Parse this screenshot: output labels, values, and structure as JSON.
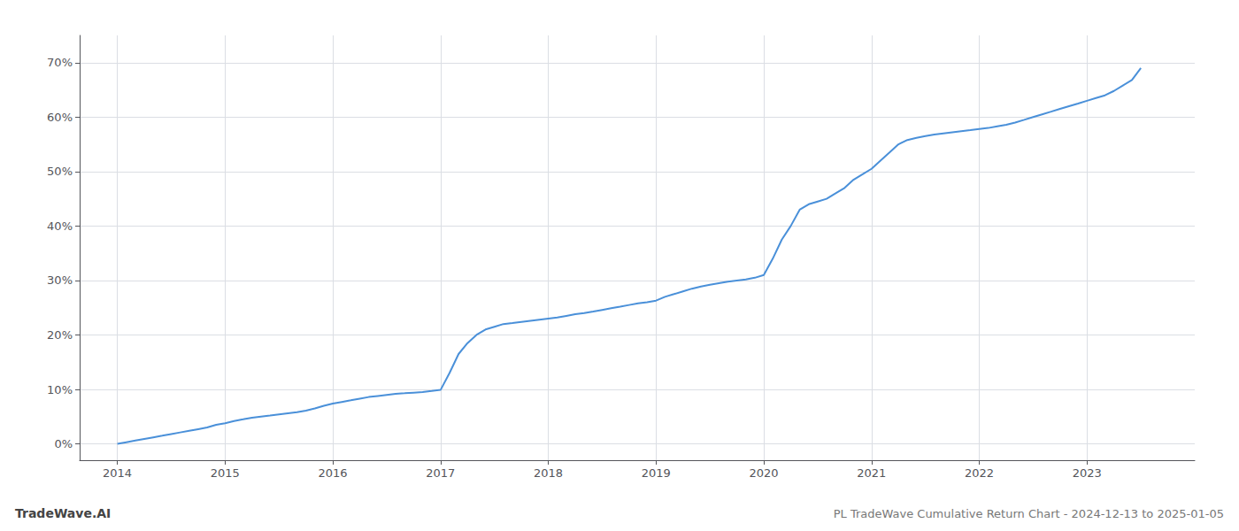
{
  "chart_data": {
    "type": "line",
    "title": "PL TradeWave Cumulative Return Chart - 2024-12-13 to 2025-01-05",
    "annotations": [
      "TradeWave.AI"
    ],
    "color": "#4a90d9",
    "grid": true,
    "xlim": [
      2013.65,
      2024.0
    ],
    "xticks": [
      2014,
      2015,
      2016,
      2017,
      2018,
      2019,
      2020,
      2021,
      2022,
      2023
    ],
    "ylim": [
      -3,
      75
    ],
    "yticks": [
      {
        "value": 0,
        "label": "0%"
      },
      {
        "value": 10,
        "label": "10%"
      },
      {
        "value": 20,
        "label": "20%"
      },
      {
        "value": 30,
        "label": "30%"
      },
      {
        "value": 40,
        "label": "40%"
      },
      {
        "value": 50,
        "label": "50%"
      },
      {
        "value": 60,
        "label": "60%"
      },
      {
        "value": 70,
        "label": "70%"
      }
    ],
    "x": [
      2014.0,
      2014.083,
      2014.167,
      2014.25,
      2014.333,
      2014.417,
      2014.5,
      2014.583,
      2014.667,
      2014.75,
      2014.833,
      2014.917,
      2015.0,
      2015.083,
      2015.167,
      2015.25,
      2015.333,
      2015.417,
      2015.5,
      2015.583,
      2015.667,
      2015.75,
      2015.833,
      2015.917,
      2016.0,
      2016.083,
      2016.167,
      2016.25,
      2016.333,
      2016.417,
      2016.5,
      2016.583,
      2016.667,
      2016.75,
      2016.833,
      2016.917,
      2017.0,
      2017.083,
      2017.167,
      2017.25,
      2017.333,
      2017.417,
      2017.5,
      2017.583,
      2017.667,
      2017.75,
      2017.833,
      2017.917,
      2018.0,
      2018.083,
      2018.167,
      2018.25,
      2018.333,
      2018.417,
      2018.5,
      2018.583,
      2018.667,
      2018.75,
      2018.833,
      2018.917,
      2019.0,
      2019.083,
      2019.167,
      2019.25,
      2019.333,
      2019.417,
      2019.5,
      2019.583,
      2019.667,
      2019.75,
      2019.833,
      2019.917,
      2020.0,
      2020.083,
      2020.167,
      2020.25,
      2020.333,
      2020.417,
      2020.5,
      2020.583,
      2020.667,
      2020.75,
      2020.833,
      2020.917,
      2021.0,
      2021.083,
      2021.167,
      2021.25,
      2021.333,
      2021.417,
      2021.5,
      2021.583,
      2021.667,
      2021.75,
      2021.833,
      2021.917,
      2022.0,
      2022.083,
      2022.167,
      2022.25,
      2022.333,
      2022.417,
      2022.5,
      2022.583,
      2022.667,
      2022.75,
      2022.833,
      2022.917,
      2023.0,
      2023.083,
      2023.167,
      2023.25,
      2023.333,
      2023.417,
      2023.5
    ],
    "values": [
      0.0,
      0.3,
      0.6,
      0.9,
      1.2,
      1.5,
      1.8,
      2.1,
      2.4,
      2.7,
      3.0,
      3.5,
      3.8,
      4.2,
      4.5,
      4.8,
      5.0,
      5.2,
      5.4,
      5.6,
      5.8,
      6.1,
      6.5,
      7.0,
      7.4,
      7.7,
      8.0,
      8.3,
      8.6,
      8.8,
      9.0,
      9.2,
      9.3,
      9.4,
      9.5,
      9.7,
      9.9,
      13.0,
      16.5,
      18.5,
      20.0,
      21.0,
      21.5,
      22.0,
      22.2,
      22.4,
      22.6,
      22.8,
      23.0,
      23.2,
      23.5,
      23.8,
      24.0,
      24.3,
      24.6,
      24.9,
      25.2,
      25.5,
      25.8,
      26.0,
      26.3,
      27.0,
      27.5,
      28.0,
      28.5,
      28.9,
      29.2,
      29.5,
      29.8,
      30.0,
      30.2,
      30.5,
      31.0,
      34.0,
      37.5,
      40.0,
      43.0,
      44.0,
      44.5,
      45.0,
      46.0,
      47.0,
      48.5,
      49.5,
      50.5,
      52.0,
      53.5,
      55.0,
      55.8,
      56.2,
      56.5,
      56.8,
      57.0,
      57.2,
      57.4,
      57.6,
      57.8,
      58.0,
      58.3,
      58.6,
      59.0,
      59.5,
      60.0,
      60.5,
      61.0,
      61.5,
      62.0,
      62.5,
      63.0,
      63.5,
      64.0,
      64.8,
      65.8,
      66.8,
      69.0
    ]
  }
}
